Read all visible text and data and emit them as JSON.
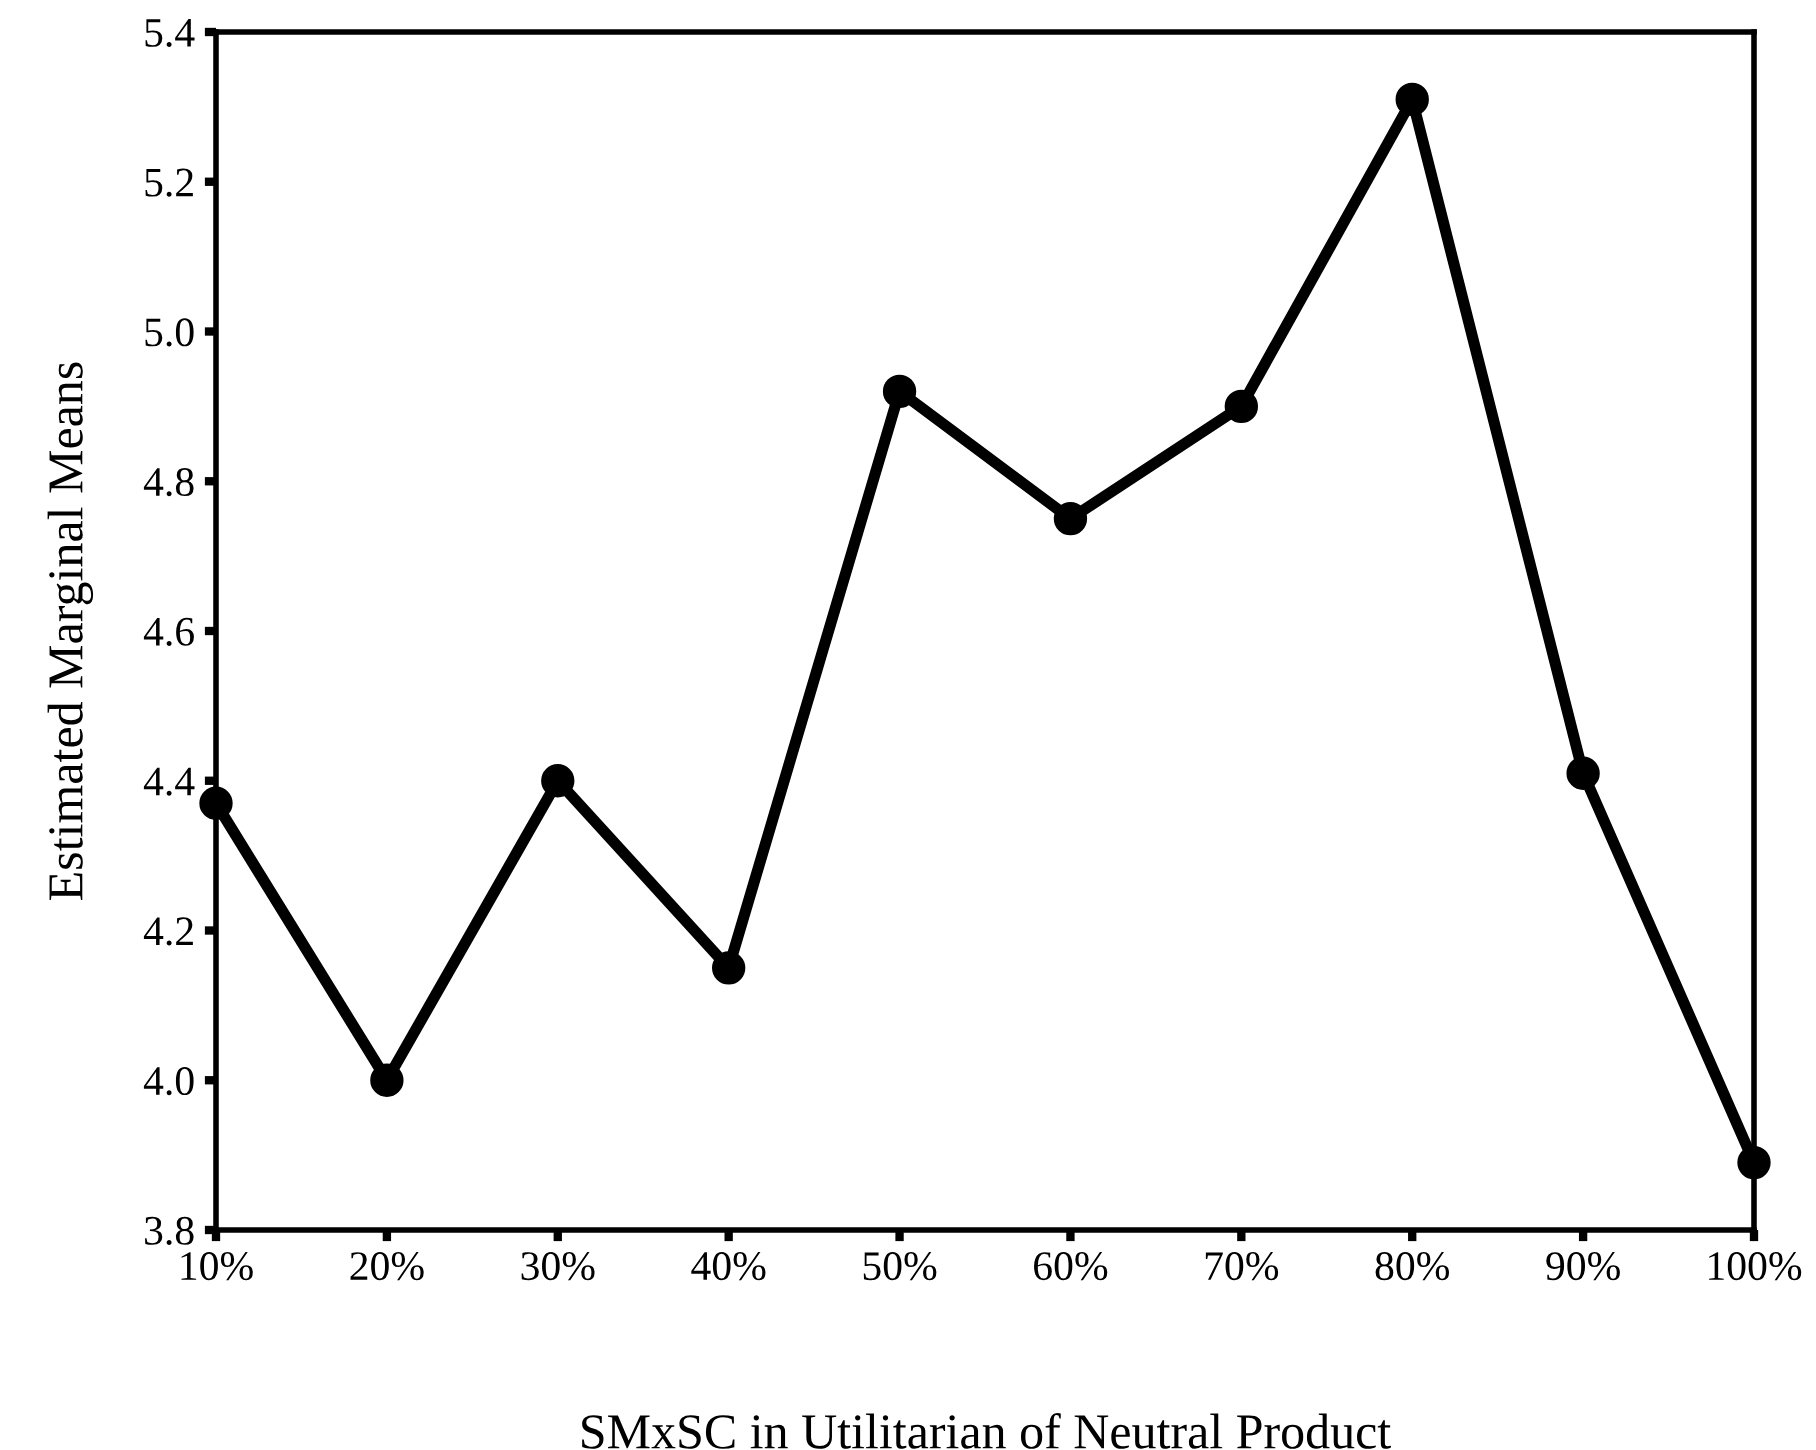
{
  "chart_data": {
    "type": "line",
    "xlabel": "SMxSC in Utilitarian of Neutral Product",
    "ylabel": "Estimated Marginal Means",
    "categories": [
      "10%",
      "20%",
      "30%",
      "40%",
      "50%",
      "60%",
      "70%",
      "80%",
      "90%",
      "100%"
    ],
    "series": [
      {
        "color": "#000000",
        "values": [
          4.37,
          4.0,
          4.4,
          4.15,
          4.92,
          4.75,
          4.9,
          5.31,
          4.41,
          3.89
        ]
      }
    ],
    "ylim": [
      3.8,
      5.4
    ],
    "yticks": [
      3.8,
      {
        "value": 4,
        "label": "4.0"
      },
      4.2,
      4.4,
      4.6,
      4.8,
      {
        "value": 5,
        "label": "5.0"
      },
      5.2,
      5.4
    ],
    "marker": "circle",
    "line_style": "solid"
  }
}
